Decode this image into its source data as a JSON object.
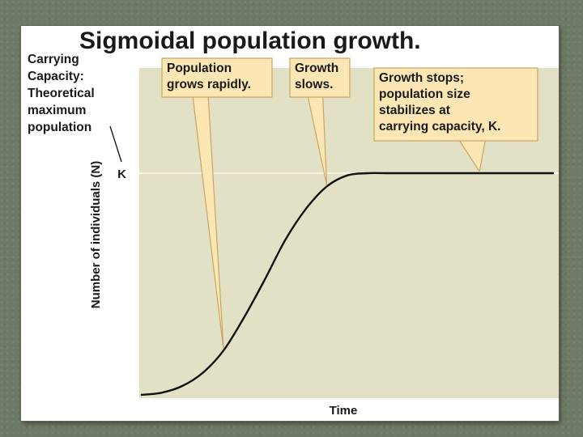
{
  "colors": {
    "plot_background": "#e3e1c5",
    "curve": "#111111",
    "k_line": "#fffbe8",
    "callout_fill": "#fbe6b4",
    "callout_border": "#c9a562",
    "frame": "#6f7a66"
  },
  "chart_data": {
    "type": "line",
    "title": "Sigmoidal population growth.",
    "xlabel": "Time",
    "ylabel": "Number of individuals (N)",
    "k_label": "K",
    "k_value": 1,
    "ylim": [
      0,
      1.1
    ],
    "xlim": [
      0,
      1
    ],
    "axis_ticks": false,
    "grid": false,
    "series": [
      {
        "x": [
          0,
          0.05,
          0.1,
          0.15,
          0.2,
          0.25,
          0.3,
          0.35,
          0.4,
          0.45,
          0.5,
          0.55,
          0.6,
          0.65,
          0.7,
          0.8,
          0.9,
          1.0
        ],
        "values": [
          0.0,
          0.01,
          0.04,
          0.1,
          0.2,
          0.35,
          0.52,
          0.7,
          0.84,
          0.94,
          0.99,
          1.0,
          1.0,
          1.0,
          1.0,
          1.0,
          1.0,
          1.0
        ]
      }
    ],
    "side_annotation": {
      "lines": [
        "Carrying",
        "Capacity:",
        "Theoretical",
        "maximum",
        "population"
      ]
    },
    "callouts": [
      {
        "lines": [
          "Population",
          "grows rapidly."
        ],
        "points_to_x": 0.2
      },
      {
        "lines": [
          "Growth",
          "slows."
        ],
        "points_to_x": 0.45
      },
      {
        "lines": [
          "Growth stops;",
          "population size",
          "stabilizes at",
          "carrying capacity, K."
        ],
        "points_to_x": 0.82
      }
    ]
  }
}
